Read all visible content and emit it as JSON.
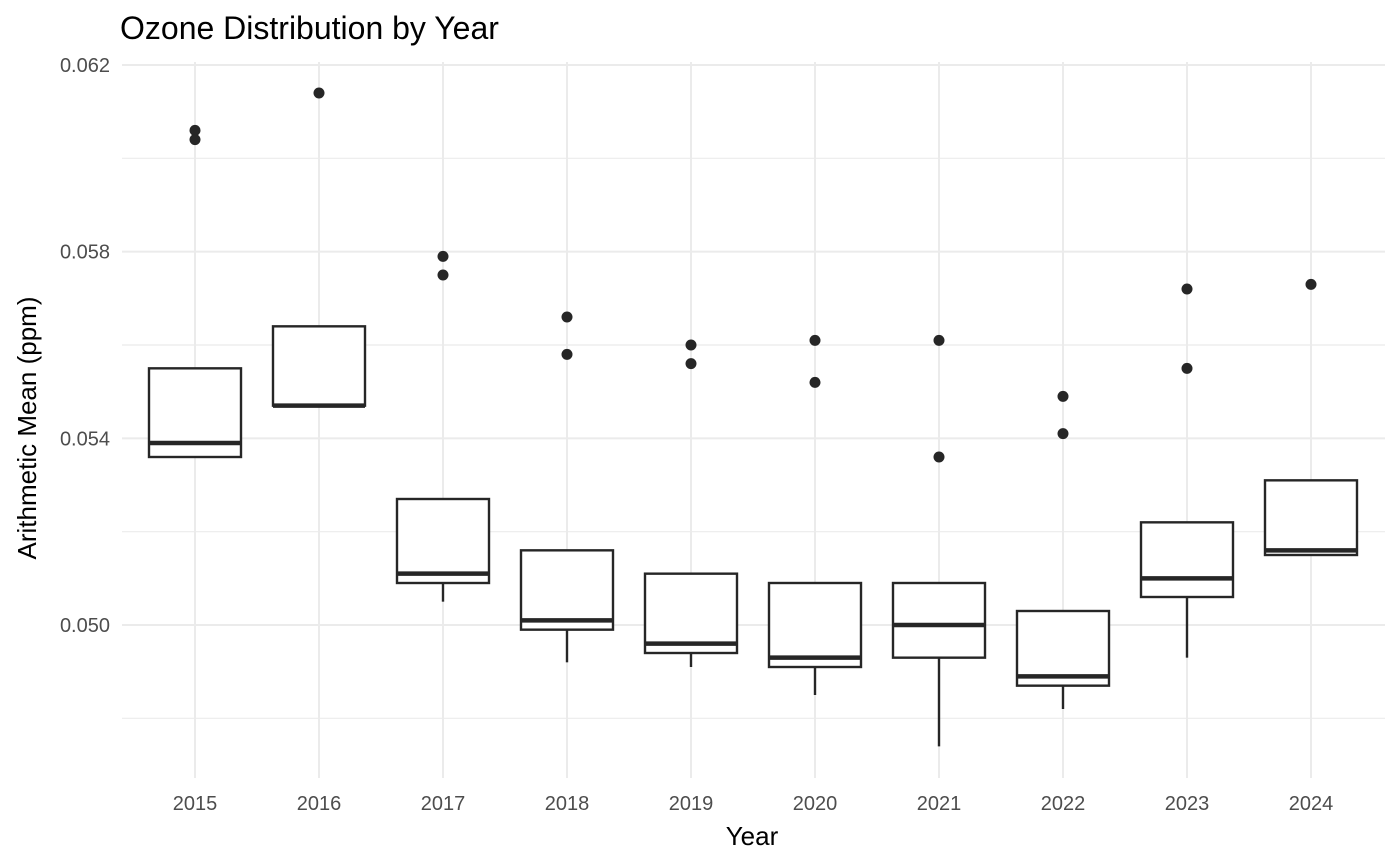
{
  "chart_data": {
    "type": "boxplot",
    "title": "Ozone Distribution by Year",
    "xlabel": "Year",
    "ylabel": "Arithmetic Mean (ppm)",
    "ylim": [
      0.0468,
      0.0621
    ],
    "y_ticks": [
      "0.050",
      "0.054",
      "0.058",
      "0.062"
    ],
    "y_tick_values": [
      0.05,
      0.054,
      0.058,
      0.062
    ],
    "y_minor_values": [
      0.048,
      0.052,
      0.056,
      0.06
    ],
    "grid": true,
    "categories": [
      "2015",
      "2016",
      "2017",
      "2018",
      "2019",
      "2020",
      "2021",
      "2022",
      "2023",
      "2024"
    ],
    "boxes": [
      {
        "min": 0.0536,
        "q1": 0.0536,
        "median": 0.0539,
        "q3": 0.0555,
        "max": 0.0555,
        "outliers": [
          0.0604,
          0.0606
        ]
      },
      {
        "min": 0.0547,
        "q1": 0.0547,
        "median": 0.0547,
        "q3": 0.0564,
        "max": 0.0564,
        "outliers": [
          0.0614
        ]
      },
      {
        "min": 0.0505,
        "q1": 0.0509,
        "median": 0.0511,
        "q3": 0.0527,
        "max": 0.0527,
        "outliers": [
          0.0575,
          0.0579
        ]
      },
      {
        "min": 0.0492,
        "q1": 0.0499,
        "median": 0.0501,
        "q3": 0.0516,
        "max": 0.0516,
        "outliers": [
          0.0558,
          0.0566
        ]
      },
      {
        "min": 0.0491,
        "q1": 0.0494,
        "median": 0.0496,
        "q3": 0.0511,
        "max": 0.0511,
        "outliers": [
          0.0556,
          0.056
        ]
      },
      {
        "min": 0.0485,
        "q1": 0.0491,
        "median": 0.0493,
        "q3": 0.0509,
        "max": 0.0509,
        "outliers": [
          0.0552,
          0.0561
        ]
      },
      {
        "min": 0.0474,
        "q1": 0.0493,
        "median": 0.05,
        "q3": 0.0509,
        "max": 0.0509,
        "outliers": [
          0.0536,
          0.0561
        ]
      },
      {
        "min": 0.0482,
        "q1": 0.0487,
        "median": 0.0489,
        "q3": 0.0503,
        "max": 0.0503,
        "outliers": [
          0.0541,
          0.0549
        ]
      },
      {
        "min": 0.0493,
        "q1": 0.0506,
        "median": 0.051,
        "q3": 0.0522,
        "max": 0.0522,
        "outliers": [
          0.0555,
          0.0572
        ]
      },
      {
        "min": 0.0515,
        "q1": 0.0515,
        "median": 0.0516,
        "q3": 0.0531,
        "max": 0.0531,
        "outliers": [
          0.0573
        ]
      }
    ]
  }
}
